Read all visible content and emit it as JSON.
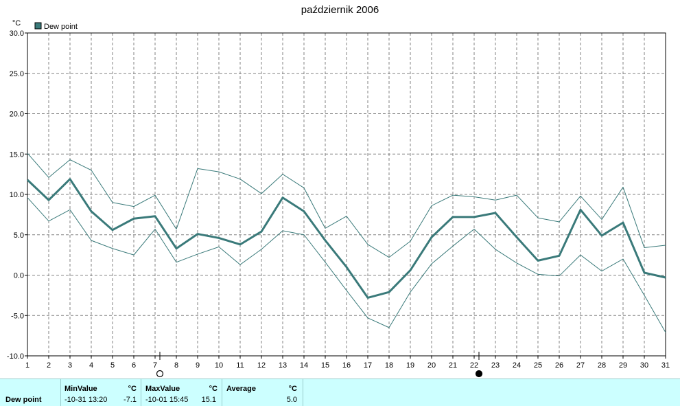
{
  "title": "październik 2006",
  "chart_data": {
    "type": "line",
    "ylabel": "°C",
    "ylim": [
      -10,
      30
    ],
    "yticks": [
      "30.0",
      "25.0",
      "20.0",
      "15.0",
      "10.0",
      "5.0",
      "0.0",
      "-5.0",
      "-10.0"
    ],
    "x": [
      1,
      2,
      3,
      4,
      5,
      6,
      7,
      8,
      9,
      10,
      11,
      12,
      13,
      14,
      15,
      16,
      17,
      18,
      19,
      20,
      21,
      22,
      23,
      24,
      25,
      26,
      27,
      28,
      29,
      30,
      31
    ],
    "legend": "Dew point",
    "legend_color": "#3a7a7a",
    "moon_markers": [
      {
        "day": 7,
        "phase": "full"
      },
      {
        "day": 22,
        "phase": "new"
      }
    ],
    "series": [
      {
        "name": "Dew point",
        "role": "mean",
        "values": [
          11.8,
          9.3,
          11.9,
          7.9,
          5.6,
          7.0,
          7.3,
          3.3,
          5.1,
          4.6,
          3.8,
          5.4,
          9.6,
          7.9,
          4.3,
          1.0,
          -2.8,
          -2.1,
          0.6,
          4.7,
          7.2,
          7.2,
          7.7,
          4.7,
          1.8,
          2.4,
          8.1,
          4.9,
          6.5,
          0.3,
          -0.3
        ]
      },
      {
        "role": "max",
        "values": [
          15.1,
          12.1,
          14.3,
          13.0,
          9.0,
          8.5,
          9.9,
          5.7,
          13.2,
          12.8,
          11.9,
          10.1,
          12.5,
          10.8,
          5.8,
          7.3,
          3.8,
          2.2,
          4.2,
          8.6,
          9.9,
          9.7,
          9.3,
          9.9,
          7.1,
          6.6,
          9.8,
          6.9,
          10.9,
          3.4,
          3.7
        ]
      },
      {
        "role": "min",
        "values": [
          9.6,
          6.7,
          8.1,
          4.3,
          3.3,
          2.5,
          5.7,
          1.6,
          2.6,
          3.5,
          1.3,
          3.2,
          5.5,
          5.0,
          1.6,
          -1.9,
          -5.3,
          -6.5,
          -2.1,
          1.4,
          3.6,
          5.7,
          3.2,
          1.5,
          0.1,
          -0.1,
          2.5,
          0.5,
          2.0,
          -2.5,
          -7.1
        ]
      }
    ],
    "grid": true
  },
  "stats": {
    "row_label": "Dew point",
    "min": {
      "header": "MinValue",
      "unit": "°C",
      "time": "-10-31  13:20",
      "value": "-7.1"
    },
    "max": {
      "header": "MaxValue",
      "unit": "°C",
      "time": "-10-01  15:45",
      "value": "15.1"
    },
    "avg": {
      "header": "Average",
      "unit": "°C",
      "value": "5.0"
    }
  }
}
